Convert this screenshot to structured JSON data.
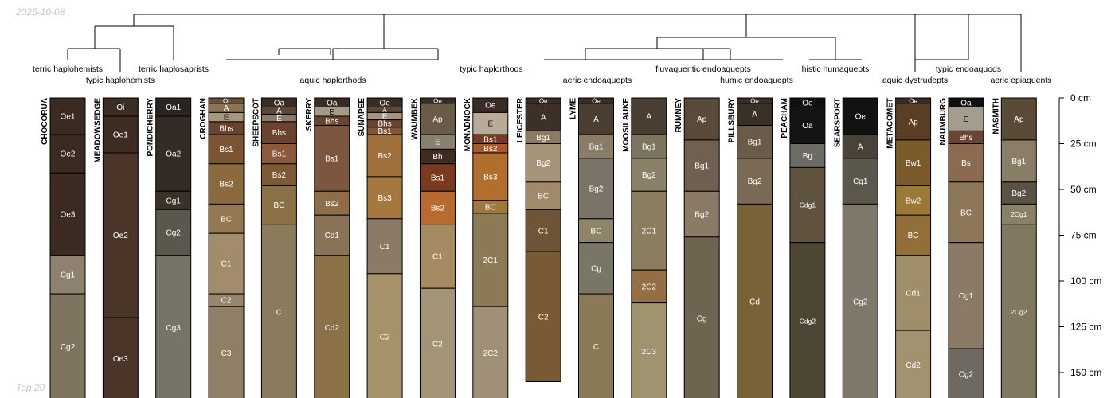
{
  "date_label": "2025-10-08",
  "footer_label": "Top 20",
  "depth_unit": "cm",
  "depth_ticks": [
    0,
    25,
    50,
    75,
    100,
    125,
    150
  ],
  "taxa": [
    "terric haplohemists",
    "typic haplohemists",
    "terric haplosaprists",
    "aquic haplorthods",
    "typic haplorthods",
    "aeric endoaquepts",
    "fluvaquentic endoaquepts",
    "humic endoaquepts",
    "histic humaquepts",
    "aquic dystrudepts",
    "typic endoaquods",
    "aeric epiaquents"
  ],
  "profiles": [
    {
      "name": "CHOCORUA",
      "horizons": [
        {
          "name": "Oe1",
          "top": 0,
          "bottom": 20,
          "color": "#3b2a22"
        },
        {
          "name": "Oe2",
          "top": 20,
          "bottom": 41,
          "color": "#3b2a22"
        },
        {
          "name": "Oe3",
          "top": 41,
          "bottom": 86,
          "color": "#3b2a22"
        },
        {
          "name": "Cg1",
          "top": 86,
          "bottom": 107,
          "color": "#8e8170"
        },
        {
          "name": "Cg2",
          "top": 107,
          "bottom": 165,
          "color": "#7f7460"
        }
      ]
    },
    {
      "name": "MEADOWSEDGE",
      "horizons": [
        {
          "name": "Oi",
          "top": 0,
          "bottom": 10,
          "color": "#3d2c22"
        },
        {
          "name": "Oe1",
          "top": 10,
          "bottom": 30,
          "color": "#3d2c22"
        },
        {
          "name": "Oe2",
          "top": 30,
          "bottom": 120,
          "color": "#4a3528"
        },
        {
          "name": "Oe3",
          "top": 120,
          "bottom": 165,
          "color": "#4a3528"
        }
      ]
    },
    {
      "name": "PONDICHERRY",
      "horizons": [
        {
          "name": "Oa1",
          "top": 0,
          "bottom": 10,
          "color": "#2d2520"
        },
        {
          "name": "Oa2",
          "top": 10,
          "bottom": 51,
          "color": "#342b25"
        },
        {
          "name": "Cg1",
          "top": 51,
          "bottom": 61,
          "color": "#3a3128"
        },
        {
          "name": "Cg2",
          "top": 61,
          "bottom": 86,
          "color": "#5b574c"
        },
        {
          "name": "Cg3",
          "top": 86,
          "bottom": 165,
          "color": "#777467"
        }
      ]
    },
    {
      "name": "CROGHAN",
      "horizons": [
        {
          "name": "Oi",
          "top": 0,
          "bottom": 3,
          "color": "#6b4f36"
        },
        {
          "name": "A",
          "top": 3,
          "bottom": 8,
          "color": "#8a7458"
        },
        {
          "name": "E",
          "top": 8,
          "bottom": 13,
          "color": "#a69880"
        },
        {
          "name": "Bhs",
          "top": 13,
          "bottom": 20,
          "color": "#6a4330"
        },
        {
          "name": "Bs1",
          "top": 20,
          "bottom": 36,
          "color": "#7b5433"
        },
        {
          "name": "Bs2",
          "top": 36,
          "bottom": 58,
          "color": "#8a6a3e"
        },
        {
          "name": "BC",
          "top": 58,
          "bottom": 74,
          "color": "#947851"
        },
        {
          "name": "C1",
          "top": 74,
          "bottom": 107,
          "color": "#a38c6c"
        },
        {
          "name": "C2",
          "top": 107,
          "bottom": 114,
          "color": "#97866d"
        },
        {
          "name": "C3",
          "top": 114,
          "bottom": 165,
          "color": "#8e7f66"
        }
      ]
    },
    {
      "name": "SHEEPSCOT",
      "horizons": [
        {
          "name": "Oa",
          "top": 0,
          "bottom": 5,
          "color": "#3a2c24"
        },
        {
          "name": "A",
          "top": 5,
          "bottom": 9,
          "color": "#5c4636"
        },
        {
          "name": "E",
          "top": 9,
          "bottom": 13,
          "color": "#8b7a66"
        },
        {
          "name": "Bhs",
          "top": 13,
          "bottom": 25,
          "color": "#6b432f"
        },
        {
          "name": "Bs1",
          "top": 25,
          "bottom": 36,
          "color": "#8b5a3c"
        },
        {
          "name": "Bs2",
          "top": 36,
          "bottom": 48,
          "color": "#7d5a35"
        },
        {
          "name": "BC",
          "top": 48,
          "bottom": 69,
          "color": "#8c7048"
        },
        {
          "name": "C",
          "top": 69,
          "bottom": 165,
          "color": "#8b7b5d"
        }
      ]
    },
    {
      "name": "SKERRY",
      "horizons": [
        {
          "name": "Oa",
          "top": 0,
          "bottom": 5,
          "color": "#3a2c24"
        },
        {
          "name": "E",
          "top": 5,
          "bottom": 10,
          "color": "#a59a8a"
        },
        {
          "name": "Bhs",
          "top": 10,
          "bottom": 15,
          "color": "#6a4430"
        },
        {
          "name": "Bs1",
          "top": 15,
          "bottom": 51,
          "color": "#7d5640"
        },
        {
          "name": "Bs2",
          "top": 51,
          "bottom": 64,
          "color": "#8f6d48"
        },
        {
          "name": "Cd1",
          "top": 64,
          "bottom": 86,
          "color": "#8a7256"
        },
        {
          "name": "Cd2",
          "top": 86,
          "bottom": 165,
          "color": "#8a7148"
        }
      ]
    },
    {
      "name": "SUNAPEE",
      "horizons": [
        {
          "name": "Oe",
          "top": 0,
          "bottom": 5,
          "color": "#3a2c24"
        },
        {
          "name": "A",
          "top": 5,
          "bottom": 8,
          "color": "#5e4838"
        },
        {
          "name": "E",
          "top": 8,
          "bottom": 12,
          "color": "#a19480"
        },
        {
          "name": "Bhs",
          "top": 12,
          "bottom": 16,
          "color": "#6a4430"
        },
        {
          "name": "Bs1",
          "top": 16,
          "bottom": 20,
          "color": "#7f5534"
        },
        {
          "name": "Bs2",
          "top": 20,
          "bottom": 43,
          "color": "#a0703c"
        },
        {
          "name": "Bs3",
          "top": 43,
          "bottom": 66,
          "color": "#a6773e"
        },
        {
          "name": "C1",
          "top": 66,
          "bottom": 96,
          "color": "#8a7a66"
        },
        {
          "name": "C2",
          "top": 96,
          "bottom": 165,
          "color": "#a5916a"
        }
      ]
    },
    {
      "name": "WAUMBEK",
      "horizons": [
        {
          "name": "Oe",
          "top": 0,
          "bottom": 3,
          "color": "#3a2c24"
        },
        {
          "name": "Ap",
          "top": 3,
          "bottom": 20,
          "color": "#6b5a48"
        },
        {
          "name": "E",
          "top": 20,
          "bottom": 28,
          "color": "#8a8070"
        },
        {
          "name": "Bh",
          "top": 28,
          "bottom": 36,
          "color": "#3e2c22"
        },
        {
          "name": "Bs1",
          "top": 36,
          "bottom": 51,
          "color": "#7a3a20"
        },
        {
          "name": "Bs2",
          "top": 51,
          "bottom": 69,
          "color": "#b86b30"
        },
        {
          "name": "C1",
          "top": 69,
          "bottom": 104,
          "color": "#a68a62"
        },
        {
          "name": "C2",
          "top": 104,
          "bottom": 165,
          "color": "#a39478"
        }
      ]
    },
    {
      "name": "MONADNOCK",
      "horizons": [
        {
          "name": "Oe",
          "top": 0,
          "bottom": 8,
          "color": "#3a2c24"
        },
        {
          "name": "E",
          "top": 8,
          "bottom": 20,
          "color": "#b8aa98"
        },
        {
          "name": "Bs1",
          "top": 20,
          "bottom": 25,
          "color": "#7b3b22"
        },
        {
          "name": "Bs2",
          "top": 25,
          "bottom": 30,
          "color": "#a85a2c"
        },
        {
          "name": "Bs3",
          "top": 30,
          "bottom": 56,
          "color": "#b06f2e"
        },
        {
          "name": "BC",
          "top": 56,
          "bottom": 63,
          "color": "#a0783e"
        },
        {
          "name": "2C1",
          "top": 63,
          "bottom": 114,
          "color": "#8c7a55"
        },
        {
          "name": "2C2",
          "top": 114,
          "bottom": 165,
          "color": "#a09078"
        }
      ]
    },
    {
      "name": "LEICESTER",
      "horizons": [
        {
          "name": "Oe",
          "top": 0,
          "bottom": 3,
          "color": "#3a2c24"
        },
        {
          "name": "A",
          "top": 3,
          "bottom": 18,
          "color": "#3c3028"
        },
        {
          "name": "Bg1",
          "top": 18,
          "bottom": 25,
          "color": "#8a7a66"
        },
        {
          "name": "Bg2",
          "top": 25,
          "bottom": 46,
          "color": "#a59478"
        },
        {
          "name": "BC",
          "top": 46,
          "bottom": 61,
          "color": "#a08a6a"
        },
        {
          "name": "C1",
          "top": 61,
          "bottom": 84,
          "color": "#6e5538"
        },
        {
          "name": "C2",
          "top": 84,
          "bottom": 155,
          "color": "#7a5a35"
        }
      ]
    },
    {
      "name": "LYME",
      "horizons": [
        {
          "name": "Oe",
          "top": 0,
          "bottom": 3,
          "color": "#3a2c24"
        },
        {
          "name": "A",
          "top": 3,
          "bottom": 20,
          "color": "#4a3e33"
        },
        {
          "name": "Bg1",
          "top": 20,
          "bottom": 33,
          "color": "#8a7b66"
        },
        {
          "name": "Bg2",
          "top": 33,
          "bottom": 66,
          "color": "#7a7468"
        },
        {
          "name": "BC",
          "top": 66,
          "bottom": 79,
          "color": "#8e8468"
        },
        {
          "name": "Cg",
          "top": 79,
          "bottom": 107,
          "color": "#7a7666"
        },
        {
          "name": "C",
          "top": 107,
          "bottom": 165,
          "color": "#8a7a56"
        }
      ]
    },
    {
      "name": "MOOSILAUKE",
      "horizons": [
        {
          "name": "A",
          "top": 0,
          "bottom": 20,
          "color": "#4a3e33"
        },
        {
          "name": "Bg1",
          "top": 20,
          "bottom": 33,
          "color": "#7d7460"
        },
        {
          "name": "Bg2",
          "top": 33,
          "bottom": 51,
          "color": "#8a8068"
        },
        {
          "name": "2C1",
          "top": 51,
          "bottom": 94,
          "color": "#8a7e5e"
        },
        {
          "name": "2C2",
          "top": 94,
          "bottom": 112,
          "color": "#946e45"
        },
        {
          "name": "2C3",
          "top": 112,
          "bottom": 165,
          "color": "#a09470"
        }
      ]
    },
    {
      "name": "RUMNEY",
      "horizons": [
        {
          "name": "Ap",
          "top": 0,
          "bottom": 23,
          "color": "#5a4a3a"
        },
        {
          "name": "Bg1",
          "top": 23,
          "bottom": 51,
          "color": "#6f6050"
        },
        {
          "name": "Bg2",
          "top": 51,
          "bottom": 76,
          "color": "#8a7a66"
        },
        {
          "name": "Cg",
          "top": 76,
          "bottom": 165,
          "color": "#6e6450"
        }
      ]
    },
    {
      "name": "PILLSBURY",
      "horizons": [
        {
          "name": "Oe",
          "top": 0,
          "bottom": 3,
          "color": "#3a2c24"
        },
        {
          "name": "A",
          "top": 3,
          "bottom": 15,
          "color": "#3a3028"
        },
        {
          "name": "Bg1",
          "top": 15,
          "bottom": 33,
          "color": "#6a5a48"
        },
        {
          "name": "Bg2",
          "top": 33,
          "bottom": 58,
          "color": "#7a6a55"
        },
        {
          "name": "Cd",
          "top": 58,
          "bottom": 165,
          "color": "#7a6238"
        }
      ]
    },
    {
      "name": "PEACHAM",
      "horizons": [
        {
          "name": "Oe",
          "top": 0,
          "bottom": 5,
          "color": "#101010"
        },
        {
          "name": "Oa",
          "top": 5,
          "bottom": 25,
          "color": "#141414"
        },
        {
          "name": "Bg",
          "top": 25,
          "bottom": 38,
          "color": "#6c6c64"
        },
        {
          "name": "Cdg1",
          "top": 38,
          "bottom": 79,
          "color": "#5f5340"
        },
        {
          "name": "Cdg2",
          "top": 79,
          "bottom": 165,
          "color": "#4e4635"
        }
      ]
    },
    {
      "name": "SEARSPORT",
      "horizons": [
        {
          "name": "Oe",
          "top": 0,
          "bottom": 20,
          "color": "#121212"
        },
        {
          "name": "A",
          "top": 20,
          "bottom": 33,
          "color": "#4a4238"
        },
        {
          "name": "Cg1",
          "top": 33,
          "bottom": 58,
          "color": "#5c574c"
        },
        {
          "name": "Cg2",
          "top": 58,
          "bottom": 165,
          "color": "#7d786a"
        }
      ]
    },
    {
      "name": "METACOMET",
      "horizons": [
        {
          "name": "Oe",
          "top": 0,
          "bottom": 3,
          "color": "#3a2c24"
        },
        {
          "name": "Ap",
          "top": 3,
          "bottom": 23,
          "color": "#5a3e26"
        },
        {
          "name": "Bw1",
          "top": 23,
          "bottom": 48,
          "color": "#7b5a2c"
        },
        {
          "name": "Bw2",
          "top": 48,
          "bottom": 64,
          "color": "#9a7838"
        },
        {
          "name": "BC",
          "top": 64,
          "bottom": 86,
          "color": "#946e38"
        },
        {
          "name": "Cd1",
          "top": 86,
          "bottom": 127,
          "color": "#a08e6a"
        },
        {
          "name": "Cd2",
          "top": 127,
          "bottom": 165,
          "color": "#a29270"
        }
      ]
    },
    {
      "name": "NAUMBURG",
      "horizons": [
        {
          "name": "Oa",
          "top": 0,
          "bottom": 5,
          "color": "#101010"
        },
        {
          "name": "E",
          "top": 5,
          "bottom": 18,
          "color": "#a49c8e"
        },
        {
          "name": "Bhs",
          "top": 18,
          "bottom": 25,
          "color": "#6a4432"
        },
        {
          "name": "Bs",
          "top": 25,
          "bottom": 46,
          "color": "#8b6a50"
        },
        {
          "name": "BC",
          "top": 46,
          "bottom": 79,
          "color": "#8e7658"
        },
        {
          "name": "Cg1",
          "top": 79,
          "bottom": 137,
          "color": "#8a7a66"
        },
        {
          "name": "Cg2",
          "top": 137,
          "bottom": 165,
          "color": "#6e6a62"
        }
      ]
    },
    {
      "name": "NASMITH",
      "horizons": [
        {
          "name": "Ap",
          "top": 0,
          "bottom": 23,
          "color": "#5a4a38"
        },
        {
          "name": "Bg1",
          "top": 23,
          "bottom": 46,
          "color": "#8a7e68"
        },
        {
          "name": "Bg2",
          "top": 46,
          "bottom": 58,
          "color": "#5a5244"
        },
        {
          "name": "2Cg1",
          "top": 58,
          "bottom": 69,
          "color": "#8a8068"
        },
        {
          "name": "2Cg2",
          "top": 69,
          "bottom": 165,
          "color": "#827760"
        }
      ]
    }
  ]
}
